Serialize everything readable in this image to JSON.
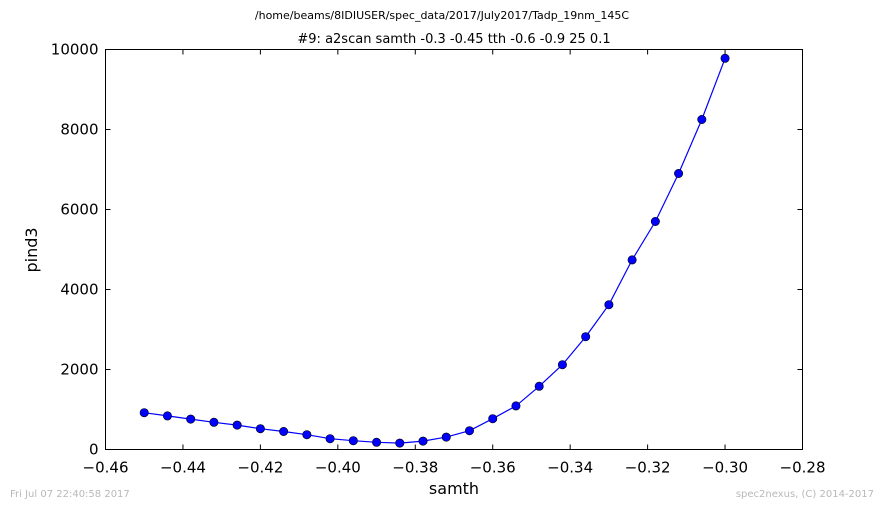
{
  "page": {
    "file_path": "/home/beams/8IDIUSER/spec_data/2017/July2017/Tadp_19nm_145C",
    "timestamp": "Fri Jul 07 22:40:58 2017",
    "credit": "spec2nexus, (C) 2014-2017"
  },
  "chart_data": {
    "type": "line",
    "title": "#9: a2scan  samth -0.3 -0.45  tth -0.6 -0.9  25 0.1",
    "xlabel": "samth",
    "ylabel": "pind3",
    "xlim": [
      -0.46,
      -0.28
    ],
    "ylim": [
      0,
      10000
    ],
    "xticks": [
      -0.46,
      -0.44,
      -0.42,
      -0.4,
      -0.38,
      -0.36,
      -0.34,
      -0.32,
      -0.3,
      -0.28
    ],
    "xtick_labels": [
      "−0.46",
      "−0.44",
      "−0.42",
      "−0.40",
      "−0.38",
      "−0.36",
      "−0.34",
      "−0.32",
      "−0.30",
      "−0.28"
    ],
    "yticks": [
      0,
      2000,
      4000,
      6000,
      8000,
      10000
    ],
    "ytick_labels": [
      "0",
      "2000",
      "4000",
      "6000",
      "8000",
      "10000"
    ],
    "grid": false,
    "series_color": "#0000ff",
    "series": [
      {
        "x": [
          -0.45,
          -0.444,
          -0.438,
          -0.432,
          -0.426,
          -0.42,
          -0.414,
          -0.408,
          -0.402,
          -0.396,
          -0.39,
          -0.384,
          -0.378,
          -0.372,
          -0.366,
          -0.36,
          -0.354,
          -0.348,
          -0.342,
          -0.336,
          -0.33,
          -0.324,
          -0.318,
          -0.312,
          -0.306,
          -0.3
        ],
        "y": [
          920,
          840,
          760,
          680,
          610,
          520,
          450,
          370,
          270,
          220,
          180,
          160,
          210,
          310,
          470,
          770,
          1090,
          1580,
          2120,
          2820,
          3620,
          4740,
          5700,
          6900,
          8250,
          9780
        ]
      }
    ]
  }
}
